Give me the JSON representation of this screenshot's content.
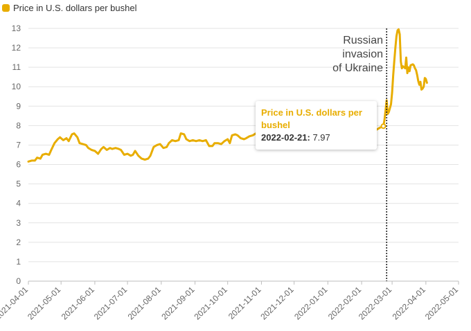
{
  "legend": {
    "label": "Price in U.S. dollars per bushel",
    "color": "#e8ad00"
  },
  "annotation": {
    "lines": [
      "Russian",
      "invasion",
      "of Ukraine"
    ],
    "date": "2022-02-24"
  },
  "tooltip": {
    "title": "Price in U.S. dollars per bushel",
    "date": "2022-02-21:",
    "value": "7.97"
  },
  "chart_data": {
    "type": "line",
    "title": "",
    "xlabel": "",
    "ylabel": "",
    "ylim": [
      0,
      13
    ],
    "xlim": [
      "2021-04-01",
      "2022-05-01"
    ],
    "grid": true,
    "legend_position": "top-left",
    "yticks": [
      "0",
      "1",
      "2",
      "3",
      "4",
      "5",
      "6",
      "7",
      "8",
      "9",
      "10",
      "11",
      "12",
      "13"
    ],
    "xticks": [
      "2021-04-01",
      "2021-05-01",
      "2021-06-01",
      "2021-07-01",
      "2021-08-01",
      "2021-09-01",
      "2021-10-01",
      "2021-11-01",
      "2021-12-01",
      "2022-01-01",
      "2022-02-01",
      "2022-03-01",
      "2022-04-01",
      "2022-05-01"
    ],
    "series": [
      {
        "name": "Price in U.S. dollars per bushel",
        "color": "#e8ad00",
        "points": [
          [
            "2021-04-01",
            6.15
          ],
          [
            "2021-04-04",
            6.2
          ],
          [
            "2021-04-07",
            6.2
          ],
          [
            "2021-04-09",
            6.35
          ],
          [
            "2021-04-12",
            6.3
          ],
          [
            "2021-04-14",
            6.5
          ],
          [
            "2021-04-17",
            6.55
          ],
          [
            "2021-04-20",
            6.5
          ],
          [
            "2021-04-22",
            6.75
          ],
          [
            "2021-04-25",
            7.1
          ],
          [
            "2021-04-28",
            7.3
          ],
          [
            "2021-04-30",
            7.4
          ],
          [
            "2021-05-03",
            7.25
          ],
          [
            "2021-05-06",
            7.35
          ],
          [
            "2021-05-08",
            7.2
          ],
          [
            "2021-05-11",
            7.55
          ],
          [
            "2021-05-13",
            7.6
          ],
          [
            "2021-05-16",
            7.4
          ],
          [
            "2021-05-18",
            7.1
          ],
          [
            "2021-05-21",
            7.05
          ],
          [
            "2021-05-24",
            7.0
          ],
          [
            "2021-05-26",
            6.85
          ],
          [
            "2021-05-29",
            6.75
          ],
          [
            "2021-06-01",
            6.7
          ],
          [
            "2021-06-04",
            6.55
          ],
          [
            "2021-06-07",
            6.8
          ],
          [
            "2021-06-09",
            6.9
          ],
          [
            "2021-06-12",
            6.75
          ],
          [
            "2021-06-15",
            6.85
          ],
          [
            "2021-06-17",
            6.8
          ],
          [
            "2021-06-20",
            6.85
          ],
          [
            "2021-06-23",
            6.8
          ],
          [
            "2021-06-25",
            6.75
          ],
          [
            "2021-06-28",
            6.5
          ],
          [
            "2021-07-01",
            6.55
          ],
          [
            "2021-07-04",
            6.45
          ],
          [
            "2021-07-06",
            6.5
          ],
          [
            "2021-07-08",
            6.7
          ],
          [
            "2021-07-11",
            6.45
          ],
          [
            "2021-07-14",
            6.3
          ],
          [
            "2021-07-17",
            6.25
          ],
          [
            "2021-07-20",
            6.3
          ],
          [
            "2021-07-22",
            6.45
          ],
          [
            "2021-07-25",
            6.9
          ],
          [
            "2021-07-28",
            7.0
          ],
          [
            "2021-07-31",
            7.05
          ],
          [
            "2021-08-03",
            6.85
          ],
          [
            "2021-08-06",
            6.9
          ],
          [
            "2021-08-08",
            7.1
          ],
          [
            "2021-08-11",
            7.25
          ],
          [
            "2021-08-14",
            7.2
          ],
          [
            "2021-08-17",
            7.25
          ],
          [
            "2021-08-19",
            7.6
          ],
          [
            "2021-08-22",
            7.55
          ],
          [
            "2021-08-24",
            7.3
          ],
          [
            "2021-08-27",
            7.2
          ],
          [
            "2021-08-30",
            7.25
          ],
          [
            "2021-09-02",
            7.2
          ],
          [
            "2021-09-05",
            7.25
          ],
          [
            "2021-09-08",
            7.2
          ],
          [
            "2021-09-11",
            7.25
          ],
          [
            "2021-09-14",
            6.95
          ],
          [
            "2021-09-17",
            6.95
          ],
          [
            "2021-09-19",
            7.1
          ],
          [
            "2021-09-22",
            7.1
          ],
          [
            "2021-09-25",
            7.05
          ],
          [
            "2021-09-28",
            7.2
          ],
          [
            "2021-10-01",
            7.3
          ],
          [
            "2021-10-03",
            7.1
          ],
          [
            "2021-10-05",
            7.5
          ],
          [
            "2021-10-08",
            7.55
          ],
          [
            "2021-10-10",
            7.5
          ],
          [
            "2021-10-13",
            7.35
          ],
          [
            "2021-10-16",
            7.3
          ],
          [
            "2021-10-18",
            7.35
          ],
          [
            "2021-10-21",
            7.45
          ],
          [
            "2021-10-24",
            7.5
          ],
          [
            "2021-10-27",
            7.6
          ],
          [
            "2021-10-28",
            7.6
          ],
          [
            "2022-02-12",
            7.7
          ],
          [
            "2022-02-15",
            7.8
          ],
          [
            "2022-02-18",
            7.9
          ],
          [
            "2022-02-21",
            7.97
          ],
          [
            "2022-02-22",
            8.3
          ],
          [
            "2022-02-23",
            8.8
          ],
          [
            "2022-02-24",
            9.3
          ],
          [
            "2022-02-25",
            8.6
          ],
          [
            "2022-02-26",
            8.7
          ],
          [
            "2022-02-28",
            9.1
          ],
          [
            "2022-03-01",
            9.7
          ],
          [
            "2022-03-02",
            10.6
          ],
          [
            "2022-03-03",
            11.3
          ],
          [
            "2022-03-04",
            12.0
          ],
          [
            "2022-03-05",
            12.6
          ],
          [
            "2022-03-06",
            12.9
          ],
          [
            "2022-03-07",
            12.95
          ],
          [
            "2022-03-08",
            12.7
          ],
          [
            "2022-03-09",
            11.3
          ],
          [
            "2022-03-10",
            10.95
          ],
          [
            "2022-03-11",
            11.05
          ],
          [
            "2022-03-13",
            10.95
          ],
          [
            "2022-03-14",
            11.5
          ],
          [
            "2022-03-15",
            10.7
          ],
          [
            "2022-03-16",
            11.0
          ],
          [
            "2022-03-17",
            10.8
          ],
          [
            "2022-03-18",
            11.1
          ],
          [
            "2022-03-20",
            11.15
          ],
          [
            "2022-03-21",
            11.1
          ],
          [
            "2022-03-22",
            10.95
          ],
          [
            "2022-03-23",
            10.85
          ],
          [
            "2022-03-24",
            10.6
          ],
          [
            "2022-03-25",
            10.3
          ],
          [
            "2022-03-26",
            10.1
          ],
          [
            "2022-03-27",
            10.25
          ],
          [
            "2022-03-28",
            9.85
          ],
          [
            "2022-03-29",
            9.9
          ],
          [
            "2022-03-30",
            10.0
          ],
          [
            "2022-03-31",
            10.45
          ],
          [
            "2022-04-01",
            10.4
          ],
          [
            "2022-04-02",
            10.2
          ]
        ]
      }
    ]
  }
}
